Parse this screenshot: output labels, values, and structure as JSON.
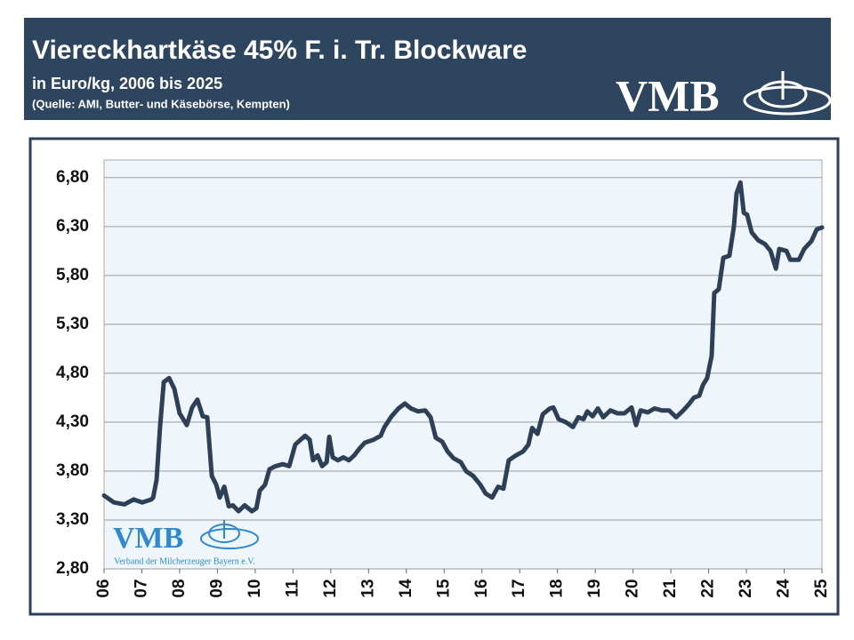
{
  "header": {
    "title": "Viereckhartkäse 45% F. i. Tr. Blockware",
    "subtitle": "in Euro/kg, 2006 bis 2025",
    "source": "(Quelle: AMI, Butter- und Käsebörse, Kempten)",
    "logo": "VMB"
  },
  "watermark": {
    "logo": "VMB",
    "caption": "Verband der Milcherzeuger Bayern e.V."
  },
  "chart_data": {
    "type": "line",
    "color": "#2e4058",
    "grid": true,
    "x": [
      6.0,
      6.26,
      6.54,
      6.78,
      7.01,
      7.25,
      7.3,
      7.39,
      7.48,
      7.58,
      7.72,
      7.86,
      8.0,
      8.19,
      8.33,
      8.47,
      8.61,
      8.73,
      8.85,
      8.97,
      9.06,
      9.18,
      9.3,
      9.41,
      9.56,
      9.72,
      9.91,
      10.03,
      10.12,
      10.26,
      10.38,
      10.54,
      10.73,
      10.9,
      11.06,
      11.2,
      11.32,
      11.44,
      11.53,
      11.65,
      11.77,
      11.89,
      11.96,
      12.05,
      12.19,
      12.33,
      12.48,
      12.62,
      12.76,
      12.9,
      13.13,
      13.32,
      13.42,
      13.61,
      13.79,
      13.96,
      14.12,
      14.31,
      14.5,
      14.64,
      14.78,
      14.95,
      15.09,
      15.25,
      15.44,
      15.58,
      15.77,
      15.96,
      16.1,
      16.27,
      16.43,
      16.57,
      16.71,
      16.9,
      17.09,
      17.23,
      17.33,
      17.47,
      17.61,
      17.8,
      17.89,
      18.03,
      18.22,
      18.41,
      18.55,
      18.69,
      18.79,
      18.93,
      19.07,
      19.21,
      19.4,
      19.59,
      19.77,
      19.96,
      20.08,
      20.2,
      20.39,
      20.57,
      20.76,
      20.95,
      21.14,
      21.33,
      21.47,
      21.61,
      21.75,
      21.85,
      21.96,
      22.08,
      22.15,
      22.27,
      22.39,
      22.55,
      22.67,
      22.74,
      22.84,
      22.93,
      23.02,
      23.14,
      23.31,
      23.49,
      23.64,
      23.78,
      23.87,
      24.06,
      24.16,
      24.39,
      24.53,
      24.72,
      24.86,
      25.0
    ],
    "values": [
      3.55,
      3.48,
      3.46,
      3.51,
      3.48,
      3.51,
      3.53,
      3.71,
      4.25,
      4.71,
      4.75,
      4.64,
      4.39,
      4.27,
      4.45,
      4.53,
      4.36,
      4.35,
      3.75,
      3.66,
      3.53,
      3.64,
      3.44,
      3.45,
      3.39,
      3.45,
      3.39,
      3.42,
      3.6,
      3.66,
      3.82,
      3.85,
      3.87,
      3.85,
      4.07,
      4.12,
      4.16,
      4.12,
      3.91,
      3.96,
      3.85,
      3.89,
      4.15,
      3.94,
      3.91,
      3.94,
      3.91,
      3.96,
      4.03,
      4.09,
      4.12,
      4.16,
      4.25,
      4.36,
      4.44,
      4.49,
      4.44,
      4.41,
      4.42,
      4.35,
      4.14,
      4.1,
      4.0,
      3.93,
      3.89,
      3.8,
      3.75,
      3.66,
      3.57,
      3.53,
      3.64,
      3.62,
      3.91,
      3.96,
      4.0,
      4.07,
      4.24,
      4.18,
      4.38,
      4.44,
      4.45,
      4.33,
      4.3,
      4.25,
      4.35,
      4.33,
      4.41,
      4.36,
      4.44,
      4.35,
      4.42,
      4.39,
      4.39,
      4.45,
      4.27,
      4.42,
      4.4,
      4.44,
      4.42,
      4.42,
      4.35,
      4.42,
      4.48,
      4.55,
      4.57,
      4.68,
      4.75,
      4.98,
      5.62,
      5.66,
      5.98,
      6.0,
      6.3,
      6.64,
      6.75,
      6.44,
      6.42,
      6.24,
      6.16,
      6.12,
      6.05,
      5.87,
      6.07,
      6.05,
      5.96,
      5.96,
      6.07,
      6.15,
      6.27,
      6.29
    ],
    "xlim": [
      6,
      25
    ],
    "xticks": [
      {
        "value": 6,
        "label": "06"
      },
      {
        "value": 7,
        "label": "07"
      },
      {
        "value": 8,
        "label": "08"
      },
      {
        "value": 9,
        "label": "09"
      },
      10,
      11,
      12,
      13,
      14,
      15,
      16,
      17,
      18,
      19,
      20,
      21,
      22,
      23,
      24,
      25
    ],
    "ylim": [
      2.8,
      6.98
    ],
    "yticks": [
      {
        "value": 2.8,
        "label": "2,80"
      },
      {
        "value": 3.3,
        "label": "3,30"
      },
      {
        "value": 3.8,
        "label": "3,80"
      },
      {
        "value": 4.3,
        "label": "4,30"
      },
      {
        "value": 4.8,
        "label": "4,80"
      },
      {
        "value": 5.3,
        "label": "5,30"
      },
      {
        "value": 5.8,
        "label": "5,80"
      },
      {
        "value": 6.3,
        "label": "6,30"
      },
      {
        "value": 6.8,
        "label": "6,80"
      }
    ]
  }
}
